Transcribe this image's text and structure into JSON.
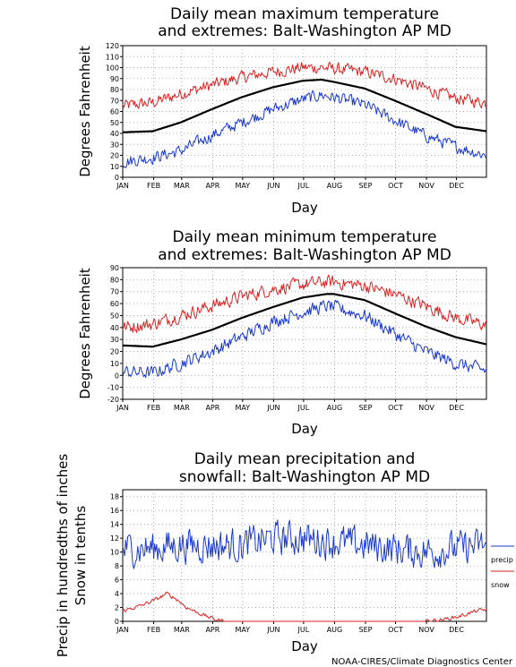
{
  "credit": "NOAA-CIRES/Climate Diagnostics Center",
  "colors": {
    "mean": "#000000",
    "max": "#dd2222",
    "min": "#1a3ad0",
    "precip": "#1a3ad0",
    "snow": "#dd2222",
    "grid": "#9a9a9a"
  },
  "chart_data": [
    {
      "type": "line",
      "title": "Daily mean maximum temperature",
      "subtitle": "and extremes: Balt-Washington AP MD",
      "xlabel": "Day",
      "ylabel": "Degrees Fahrenheit",
      "ylim": [
        0,
        120
      ],
      "yticks": [
        "0",
        "10",
        "20",
        "30",
        "40",
        "50",
        "60",
        "70",
        "80",
        "90",
        "100",
        "110",
        "120"
      ],
      "xticks": [
        "JAN",
        "FEB",
        "MAR",
        "APR",
        "MAY",
        "JUN",
        "JUL",
        "AUG",
        "SEP",
        "OCT",
        "NOV",
        "DEC"
      ],
      "grid": true,
      "series": [
        {
          "key": "mean",
          "x_doy": [
            1,
            31,
            59,
            90,
            120,
            151,
            181,
            200,
            212,
            243,
            273,
            304,
            334,
            365
          ],
          "values": [
            41,
            42,
            50,
            62,
            73,
            82,
            88,
            89,
            87,
            81,
            70,
            58,
            46,
            42
          ]
        },
        {
          "key": "max",
          "x_doy": [
            1,
            31,
            59,
            90,
            120,
            151,
            181,
            200,
            212,
            243,
            273,
            304,
            334,
            365
          ],
          "values": [
            65,
            68,
            76,
            84,
            91,
            96,
            100,
            100,
            99,
            96,
            90,
            81,
            72,
            68
          ]
        },
        {
          "key": "min",
          "x_doy": [
            1,
            31,
            59,
            90,
            120,
            151,
            181,
            200,
            212,
            243,
            273,
            304,
            334,
            365
          ],
          "values": [
            14,
            18,
            24,
            38,
            50,
            62,
            71,
            75,
            73,
            66,
            52,
            38,
            28,
            20
          ]
        }
      ]
    },
    {
      "type": "line",
      "title": "Daily mean minimum temperature",
      "subtitle": "and extremes: Balt-Washington AP MD",
      "xlabel": "Day",
      "ylabel": "Degrees Fahrenheit",
      "ylim": [
        -20,
        90
      ],
      "yticks": [
        "-20",
        "-10",
        "0",
        "10",
        "20",
        "30",
        "40",
        "50",
        "60",
        "70",
        "80",
        "90"
      ],
      "xticks": [
        "JAN",
        "FEB",
        "MAR",
        "APR",
        "MAY",
        "JUN",
        "JUL",
        "AUG",
        "SEP",
        "OCT",
        "NOV",
        "DEC"
      ],
      "grid": true,
      "series": [
        {
          "key": "mean",
          "x_doy": [
            1,
            31,
            59,
            90,
            120,
            151,
            181,
            205,
            212,
            243,
            273,
            304,
            334,
            365
          ],
          "values": [
            25,
            24,
            30,
            38,
            48,
            57,
            65,
            68,
            68,
            63,
            52,
            41,
            32,
            26
          ]
        },
        {
          "key": "max",
          "x_doy": [
            1,
            31,
            59,
            90,
            120,
            151,
            181,
            205,
            212,
            243,
            273,
            304,
            334,
            365
          ],
          "values": [
            40,
            43,
            50,
            58,
            66,
            72,
            76,
            78,
            78,
            75,
            68,
            58,
            48,
            42
          ]
        },
        {
          "key": "min",
          "x_doy": [
            1,
            31,
            59,
            90,
            120,
            151,
            181,
            205,
            212,
            243,
            273,
            304,
            334,
            365
          ],
          "values": [
            3,
            2,
            10,
            20,
            32,
            45,
            53,
            58,
            57,
            50,
            35,
            20,
            10,
            4
          ]
        }
      ]
    },
    {
      "type": "line",
      "title": "Daily mean precipitation and",
      "subtitle": "snowfall: Balt-Washington AP MD",
      "xlabel": "Day",
      "ylabel": "Precip in hundredths of inches",
      "ylabel2": "Snow in tenths",
      "ylim": [
        0,
        19
      ],
      "yticks": [
        "0",
        "2",
        "4",
        "6",
        "8",
        "10",
        "12",
        "14",
        "16",
        "18"
      ],
      "xticks": [
        "JAN",
        "FEB",
        "MAR",
        "APR",
        "MAY",
        "JUN",
        "JUL",
        "AUG",
        "SEP",
        "OCT",
        "NOV",
        "DEC"
      ],
      "grid": true,
      "legend": {
        "placement": "right",
        "entries": [
          {
            "key": "precip",
            "label": "precip"
          },
          {
            "key": "snow",
            "label": "snow"
          }
        ]
      },
      "series": [
        {
          "key": "precip",
          "name": "precip",
          "x_doy": [
            1,
            31,
            59,
            90,
            120,
            151,
            181,
            212,
            243,
            273,
            304,
            334,
            365
          ],
          "values": [
            10.5,
            10.5,
            11,
            11,
            11,
            12,
            12,
            11.5,
            11,
            10.5,
            10,
            10.5,
            11
          ]
        },
        {
          "key": "snow",
          "name": "snow",
          "x_doy": [
            1,
            20,
            35,
            45,
            55,
            65,
            80,
            95,
            105,
            300,
            320,
            340,
            355,
            365
          ],
          "values": [
            1.5,
            2.3,
            3.2,
            4,
            3.2,
            2,
            1,
            0.2,
            0,
            0,
            0.2,
            0.8,
            1.5,
            1.7
          ]
        }
      ]
    }
  ]
}
